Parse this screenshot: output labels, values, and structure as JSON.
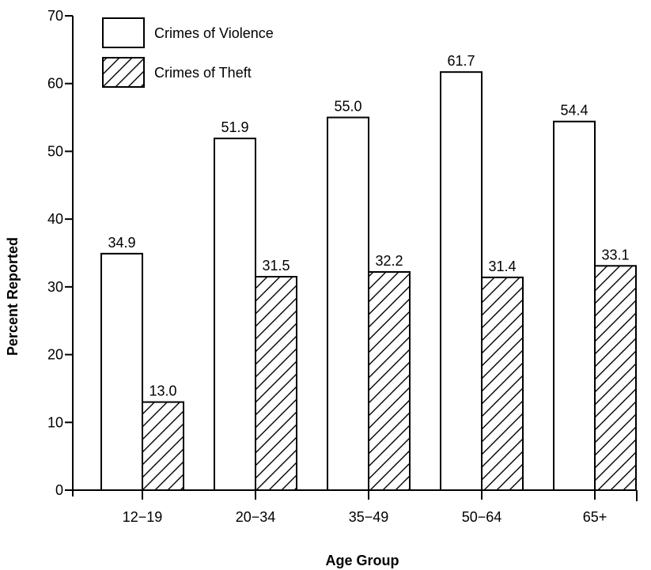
{
  "chart_data": {
    "type": "bar",
    "title": "",
    "xlabel": "Age Group",
    "ylabel": "Percent Reported",
    "categories": [
      "12−19",
      "20−34",
      "35−49",
      "50−64",
      "65+"
    ],
    "series": [
      {
        "name": "Crimes of Violence",
        "values": [
          34.9,
          51.9,
          55.0,
          61.7,
          54.4
        ],
        "value_labels": [
          "34.9",
          "51.9",
          "55.0",
          "61.7",
          "54.4"
        ],
        "fill": "#ffffff",
        "pattern": "none"
      },
      {
        "name": "Crimes of Theft",
        "values": [
          13.0,
          31.5,
          32.2,
          31.4,
          33.1
        ],
        "value_labels": [
          "13.0",
          "31.5",
          "32.2",
          "31.4",
          "33.1"
        ],
        "fill": "#ffffff",
        "pattern": "diagonal-hatch"
      }
    ],
    "ylim": [
      0,
      70
    ],
    "yticks": [
      0,
      10,
      20,
      30,
      40,
      50,
      60,
      70
    ],
    "grid": false,
    "legend_position": "top-left",
    "colors": {
      "stroke": "#000000",
      "background": "#ffffff"
    }
  }
}
